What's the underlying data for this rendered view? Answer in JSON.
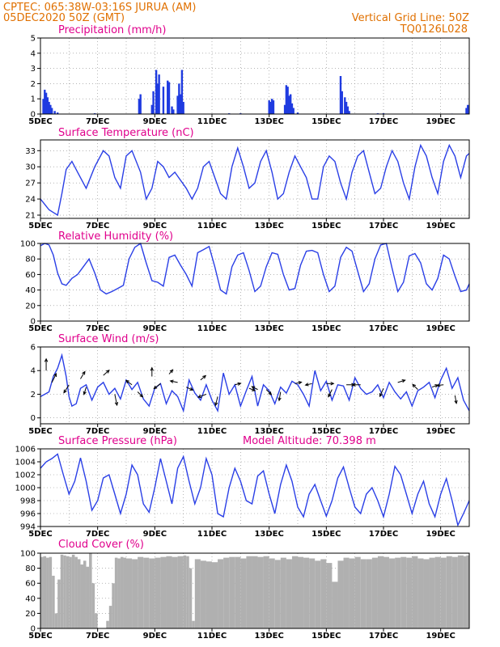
{
  "header": {
    "line1_left": "CPTEC:   065:38W-03:16S  JURUA (AM)",
    "line2_left": "05DEC2020 50Z (GMT)",
    "line1_right": "Vertical Grid Line: 50Z",
    "line2_right": "TQ0126L028"
  },
  "colors": {
    "header": "#e07000",
    "title": "#e0008c",
    "series": "#2a3fe6",
    "cloud": "#b0b0b0"
  },
  "chart_data": [
    {
      "type": "bar",
      "title": "Precipitation (mm/h)",
      "ylim": [
        0,
        5
      ],
      "yticks": [
        "0",
        "1",
        "2",
        "3",
        "4",
        "5"
      ],
      "x_ticks": [
        "5DEC",
        "7DEC",
        "9DEC",
        "11DEC",
        "13DEC",
        "15DEC",
        "17DEC",
        "19DEC"
      ],
      "x_days": [
        0,
        15
      ],
      "bars": [
        [
          0.1,
          1.0
        ],
        [
          0.15,
          1.6
        ],
        [
          0.2,
          1.4
        ],
        [
          0.25,
          1.1
        ],
        [
          0.3,
          0.8
        ],
        [
          0.35,
          0.6
        ],
        [
          0.4,
          0.4
        ],
        [
          0.5,
          0.2
        ],
        [
          0.6,
          0.1
        ],
        [
          1.9,
          0.05
        ],
        [
          3.45,
          1.0
        ],
        [
          3.5,
          1.3
        ],
        [
          3.9,
          0.6
        ],
        [
          3.95,
          1.5
        ],
        [
          4.05,
          2.9
        ],
        [
          4.1,
          2.0
        ],
        [
          4.15,
          2.6
        ],
        [
          4.3,
          1.8
        ],
        [
          4.45,
          2.2
        ],
        [
          4.5,
          2.1
        ],
        [
          4.6,
          0.5
        ],
        [
          4.65,
          0.3
        ],
        [
          4.8,
          1.2
        ],
        [
          4.85,
          2.0
        ],
        [
          4.9,
          1.3
        ],
        [
          4.95,
          2.9
        ],
        [
          5.0,
          0.8
        ],
        [
          6.6,
          0.05
        ],
        [
          7.0,
          0.05
        ],
        [
          8.0,
          0.9
        ],
        [
          8.05,
          0.8
        ],
        [
          8.1,
          1.0
        ],
        [
          8.15,
          0.9
        ],
        [
          8.55,
          0.6
        ],
        [
          8.6,
          1.9
        ],
        [
          8.65,
          1.8
        ],
        [
          8.7,
          1.2
        ],
        [
          8.75,
          1.3
        ],
        [
          8.8,
          0.7
        ],
        [
          8.85,
          0.4
        ],
        [
          9.0,
          0.1
        ],
        [
          10.5,
          2.5
        ],
        [
          10.55,
          1.5
        ],
        [
          10.65,
          1.1
        ],
        [
          10.7,
          0.8
        ],
        [
          10.75,
          0.5
        ],
        [
          10.8,
          0.2
        ],
        [
          11.8,
          0.05
        ],
        [
          12.0,
          0.05
        ],
        [
          14.4,
          0.03
        ],
        [
          14.9,
          0.4
        ],
        [
          14.95,
          0.6
        ]
      ]
    },
    {
      "type": "line",
      "title": "Surface Temperature (nC)",
      "ylim": [
        20.4,
        35
      ],
      "yticks": [
        "21",
        "24",
        "27",
        "30",
        "33"
      ],
      "ytick_values": [
        21,
        24,
        27,
        30,
        33
      ],
      "x_ticks": [
        "5DEC",
        "7DEC",
        "9DEC",
        "11DEC",
        "13DEC",
        "15DEC",
        "17DEC",
        "19DEC"
      ],
      "x_days": [
        0,
        15
      ],
      "x": [
        0,
        0.15,
        0.3,
        0.45,
        0.6,
        0.75,
        0.9,
        1.1,
        1.3,
        1.6,
        1.9,
        2.2,
        2.4,
        2.6,
        2.8,
        3.0,
        3.2,
        3.5,
        3.7,
        3.9,
        4.1,
        4.3,
        4.5,
        4.7,
        4.9,
        5.1,
        5.3,
        5.5,
        5.7,
        5.9,
        6.1,
        6.3,
        6.5,
        6.7,
        6.9,
        7.1,
        7.3,
        7.5,
        7.7,
        7.9,
        8.1,
        8.3,
        8.5,
        8.7,
        8.9,
        9.1,
        9.3,
        9.5,
        9.7,
        9.9,
        10.1,
        10.3,
        10.5,
        10.7,
        10.9,
        11.1,
        11.3,
        11.5,
        11.7,
        11.9,
        12.1,
        12.3,
        12.5,
        12.7,
        12.9,
        13.1,
        13.3,
        13.5,
        13.7,
        13.9,
        14.1,
        14.3,
        14.5,
        14.7,
        14.9,
        15.0
      ],
      "values": [
        24,
        23,
        22,
        21.5,
        21,
        25,
        29.5,
        31,
        29,
        26,
        30,
        33,
        32,
        28,
        26,
        32,
        33,
        29,
        24,
        26,
        31,
        30,
        28,
        29,
        27.5,
        26,
        24,
        26,
        30,
        31,
        28,
        25,
        24,
        30,
        33.5,
        30,
        26,
        27,
        31,
        33,
        29,
        24,
        25,
        29,
        32,
        30,
        28,
        24,
        24,
        30,
        32,
        31,
        27,
        24,
        29,
        32,
        33,
        29,
        25,
        26,
        30,
        33,
        31,
        27,
        24,
        30,
        34,
        32,
        28,
        25,
        31,
        34,
        32,
        28,
        32,
        32.5
      ]
    },
    {
      "type": "line",
      "title": "Relative Humidity (%)",
      "ylim": [
        0,
        100
      ],
      "yticks": [
        "0",
        "20",
        "40",
        "60",
        "80",
        "100"
      ],
      "ytick_values": [
        0,
        20,
        40,
        60,
        80,
        100
      ],
      "x_ticks": [
        "5DEC",
        "7DEC",
        "9DEC",
        "11DEC",
        "13DEC",
        "15DEC",
        "17DEC",
        "19DEC"
      ],
      "x_days": [
        0,
        15
      ],
      "x": [
        0,
        0.15,
        0.3,
        0.45,
        0.6,
        0.75,
        0.9,
        1.1,
        1.3,
        1.5,
        1.7,
        1.9,
        2.1,
        2.3,
        2.5,
        2.7,
        2.9,
        3.1,
        3.3,
        3.5,
        3.7,
        3.9,
        4.1,
        4.3,
        4.5,
        4.7,
        4.9,
        5.1,
        5.3,
        5.5,
        5.7,
        5.9,
        6.1,
        6.3,
        6.5,
        6.7,
        6.9,
        7.1,
        7.3,
        7.5,
        7.7,
        7.9,
        8.1,
        8.3,
        8.5,
        8.7,
        8.9,
        9.1,
        9.3,
        9.5,
        9.7,
        9.9,
        10.1,
        10.3,
        10.5,
        10.7,
        10.9,
        11.1,
        11.3,
        11.5,
        11.7,
        11.9,
        12.1,
        12.3,
        12.5,
        12.7,
        12.9,
        13.1,
        13.3,
        13.5,
        13.7,
        13.9,
        14.1,
        14.3,
        14.5,
        14.7,
        14.9,
        15.0
      ],
      "values": [
        97,
        100,
        98,
        85,
        62,
        48,
        46,
        55,
        60,
        70,
        80,
        62,
        40,
        35,
        38,
        42,
        46,
        80,
        95,
        100,
        75,
        52,
        50,
        45,
        82,
        85,
        72,
        60,
        45,
        88,
        92,
        96,
        70,
        40,
        35,
        70,
        85,
        88,
        65,
        38,
        45,
        70,
        88,
        86,
        60,
        40,
        42,
        72,
        90,
        91,
        88,
        60,
        38,
        45,
        82,
        95,
        90,
        64,
        38,
        48,
        80,
        98,
        100,
        68,
        38,
        50,
        84,
        87,
        75,
        48,
        40,
        55,
        85,
        80,
        58,
        38,
        40,
        48
      ]
    },
    {
      "type": "line",
      "title": "Surface Wind (m/s)",
      "ylim": [
        -0.5,
        6
      ],
      "yticks": [
        "0",
        "2",
        "4",
        "6"
      ],
      "ytick_values": [
        0,
        2,
        4,
        6
      ],
      "x_ticks": [
        "5DEC",
        "7DEC",
        "9DEC",
        "11DEC",
        "13DEC",
        "15DEC",
        "17DEC",
        "19DEC"
      ],
      "x_days": [
        0,
        15
      ],
      "x": [
        0,
        0.15,
        0.3,
        0.45,
        0.6,
        0.75,
        0.9,
        1.0,
        1.1,
        1.25,
        1.4,
        1.6,
        1.8,
        2.0,
        2.2,
        2.4,
        2.6,
        2.8,
        3.0,
        3.2,
        3.4,
        3.6,
        3.8,
        4.0,
        4.2,
        4.4,
        4.6,
        4.8,
        5.0,
        5.2,
        5.4,
        5.6,
        5.8,
        6.0,
        6.2,
        6.4,
        6.6,
        6.8,
        7.0,
        7.2,
        7.4,
        7.6,
        7.8,
        8.0,
        8.2,
        8.4,
        8.6,
        8.8,
        9.0,
        9.2,
        9.4,
        9.6,
        9.8,
        10.0,
        10.2,
        10.4,
        10.6,
        10.8,
        11.0,
        11.2,
        11.4,
        11.6,
        11.8,
        12.0,
        12.2,
        12.4,
        12.6,
        12.8,
        13.0,
        13.2,
        13.4,
        13.6,
        13.8,
        14.0,
        14.2,
        14.4,
        14.6,
        14.8,
        15.0
      ],
      "values": [
        1.8,
        2.0,
        2.2,
        3.5,
        4.2,
        5.3,
        3.5,
        1.8,
        1.0,
        1.2,
        2.5,
        2.8,
        1.5,
        2.6,
        3.0,
        2.0,
        2.5,
        1.6,
        3.2,
        2.4,
        3.0,
        1.6,
        1.0,
        2.5,
        2.9,
        1.2,
        2.3,
        1.8,
        0.6,
        3.2,
        2.1,
        1.5,
        2.8,
        1.5,
        0.6,
        3.8,
        2.0,
        2.8,
        1.0,
        2.3,
        3.5,
        1.0,
        2.8,
        2.3,
        1.2,
        2.6,
        2.1,
        3.1,
        2.8,
        2.0,
        1.0,
        4.0,
        2.3,
        3.1,
        1.5,
        2.8,
        2.7,
        1.5,
        3.4,
        2.5,
        2.0,
        2.2,
        2.8,
        1.7,
        3.0,
        2.2,
        1.6,
        2.2,
        1.0,
        2.3,
        2.6,
        3.0,
        1.7,
        3.2,
        4.2,
        2.5,
        3.4,
        1.5,
        0.6
      ],
      "vectors": [
        [
          0.2,
          4.0,
          0,
          1.6
        ],
        [
          0.4,
          3.0,
          0.6,
          1.2
        ],
        [
          1.0,
          2.8,
          -0.7,
          -1.1
        ],
        [
          1.4,
          3.3,
          0.6,
          1.0
        ],
        [
          1.6,
          2.6,
          -0.3,
          -1.0
        ],
        [
          2.2,
          3.6,
          0.8,
          0.7
        ],
        [
          2.6,
          2.0,
          0.3,
          -1.5
        ],
        [
          3.2,
          2.8,
          -0.8,
          0.6
        ],
        [
          3.4,
          2.2,
          0.7,
          -0.7
        ],
        [
          3.9,
          3.5,
          0,
          1.2
        ],
        [
          4.2,
          2.9,
          -0.9,
          -0.7
        ],
        [
          4.5,
          3.7,
          0.5,
          0.6
        ],
        [
          4.8,
          3.0,
          -1.0,
          0.2
        ],
        [
          5.1,
          2.6,
          0.9,
          -0.4
        ],
        [
          5.6,
          3.2,
          0.7,
          0.6
        ],
        [
          5.8,
          2.0,
          -1.1,
          -0.4
        ],
        [
          6.2,
          1.8,
          -0.3,
          -1.2
        ],
        [
          6.8,
          2.8,
          0.8,
          0.2
        ],
        [
          7.3,
          2.5,
          0.8,
          -0.3
        ],
        [
          7.6,
          2.4,
          -0.8,
          0.4
        ],
        [
          7.9,
          2.4,
          0.7,
          -0.7
        ],
        [
          8.4,
          2.2,
          -0.2,
          -1.2
        ],
        [
          8.9,
          2.9,
          0.9,
          0.2
        ],
        [
          9.5,
          2.9,
          -0.9,
          -0.2
        ],
        [
          10.0,
          2.9,
          1.0,
          0
        ],
        [
          10.2,
          2.4,
          -0.5,
          -1.0
        ],
        [
          10.7,
          2.8,
          1.1,
          0
        ],
        [
          11.2,
          2.8,
          -1.1,
          0
        ],
        [
          12.0,
          2.5,
          -0.5,
          -1.1
        ],
        [
          12.5,
          3.0,
          1.0,
          0.3
        ],
        [
          13.2,
          2.4,
          -0.7,
          0.7
        ],
        [
          13.7,
          2.6,
          0.8,
          0.3
        ],
        [
          14.1,
          2.8,
          -0.9,
          -0.1
        ],
        [
          14.5,
          1.9,
          0.2,
          -1.1
        ]
      ]
    },
    {
      "type": "line",
      "title": "Surface Pressure (hPa)",
      "annotation": "Model Altitude: 70.398 m",
      "ylim": [
        994,
        1006
      ],
      "yticks": [
        "994",
        "996",
        "998",
        "1000",
        "1002",
        "1004",
        "1006"
      ],
      "ytick_values": [
        994,
        996,
        998,
        1000,
        1002,
        1004,
        1006
      ],
      "x_ticks": [
        "5DEC",
        "7DEC",
        "9DEC",
        "11DEC",
        "13DEC",
        "15DEC",
        "17DEC",
        "19DEC"
      ],
      "x_days": [
        0,
        15
      ],
      "x": [
        0,
        0.2,
        0.4,
        0.6,
        0.8,
        1.0,
        1.2,
        1.4,
        1.6,
        1.8,
        2.0,
        2.2,
        2.4,
        2.6,
        2.8,
        3.0,
        3.2,
        3.4,
        3.6,
        3.8,
        4.0,
        4.2,
        4.4,
        4.6,
        4.8,
        5.0,
        5.2,
        5.4,
        5.6,
        5.8,
        6.0,
        6.2,
        6.4,
        6.6,
        6.8,
        7.0,
        7.2,
        7.4,
        7.6,
        7.8,
        8.0,
        8.2,
        8.4,
        8.6,
        8.8,
        9.0,
        9.2,
        9.4,
        9.6,
        9.8,
        10.0,
        10.2,
        10.4,
        10.6,
        10.8,
        11.0,
        11.2,
        11.4,
        11.6,
        11.8,
        12.0,
        12.2,
        12.4,
        12.6,
        12.8,
        13.0,
        13.2,
        13.4,
        13.6,
        13.8,
        14.0,
        14.2,
        14.4,
        14.6,
        14.8,
        15.0
      ],
      "values": [
        1003,
        1004,
        1004.5,
        1005.2,
        1002,
        999,
        1001,
        1004.6,
        1001,
        996.5,
        998,
        1001.5,
        1002,
        999,
        996,
        999,
        1003.5,
        1002,
        997.5,
        996.2,
        1000,
        1004.5,
        1001,
        997.5,
        1003,
        1004.8,
        1001,
        997.5,
        1000,
        1004.5,
        1002,
        996,
        995.5,
        1000,
        1003,
        1001,
        998,
        997.5,
        1001.8,
        1002.6,
        999,
        996,
        1000.5,
        1003.5,
        1001,
        997,
        995.5,
        999,
        1000.5,
        998,
        995.6,
        998,
        1001.5,
        1003.2,
        1000,
        997,
        996,
        999,
        1000,
        998,
        995.5,
        999,
        1003.3,
        1002,
        999,
        996,
        999,
        1001,
        997.5,
        995.5,
        999,
        1001.4,
        998,
        994.2,
        996,
        998
      ]
    },
    {
      "type": "bar",
      "title": "Cloud Cover (%)",
      "ylim": [
        0,
        100
      ],
      "yticks": [
        "0",
        "20",
        "40",
        "60",
        "80",
        "100"
      ],
      "x_ticks": [
        "5DEC",
        "7DEC",
        "9DEC",
        "11DEC",
        "13DEC",
        "15DEC",
        "17DEC",
        "19DEC"
      ],
      "x_days": [
        0,
        15
      ],
      "x": [
        0,
        0.1,
        0.2,
        0.3,
        0.4,
        0.5,
        0.6,
        0.7,
        0.8,
        0.9,
        1.0,
        1.1,
        1.2,
        1.3,
        1.4,
        1.5,
        1.6,
        1.7,
        1.8,
        1.9,
        2.0,
        2.1,
        2.2,
        2.3,
        2.4,
        2.5,
        2.6,
        2.7,
        2.8,
        2.9,
        3.0,
        3.2,
        3.4,
        3.6,
        3.8,
        4.0,
        4.2,
        4.4,
        4.6,
        4.8,
        5.0,
        5.1,
        5.2,
        5.3,
        5.4,
        5.6,
        5.8,
        6.0,
        6.2,
        6.4,
        6.6,
        6.8,
        7.0,
        7.2,
        7.4,
        7.6,
        7.8,
        8.0,
        8.2,
        8.4,
        8.6,
        8.8,
        9.0,
        9.2,
        9.4,
        9.6,
        9.8,
        10.0,
        10.2,
        10.4,
        10.6,
        10.8,
        11.0,
        11.2,
        11.4,
        11.6,
        11.8,
        12.0,
        12.2,
        12.4,
        12.6,
        12.8,
        13.0,
        13.2,
        13.4,
        13.6,
        13.8,
        14.0,
        14.2,
        14.4,
        14.6,
        14.8,
        14.9
      ],
      "values": [
        95,
        96,
        94,
        95,
        70,
        20,
        65,
        98,
        97,
        96,
        95,
        98,
        95,
        92,
        85,
        90,
        82,
        100,
        60,
        20,
        0,
        0,
        0,
        10,
        30,
        60,
        94,
        93,
        95,
        94,
        93,
        92,
        95,
        94,
        93,
        94,
        95,
        96,
        95,
        96,
        97,
        96,
        80,
        10,
        92,
        90,
        89,
        88,
        92,
        94,
        95,
        95,
        93,
        96,
        96,
        95,
        96,
        93,
        91,
        94,
        92,
        96,
        95,
        94,
        93,
        90,
        92,
        87,
        62,
        90,
        94,
        93,
        95,
        92,
        92,
        94,
        96,
        95,
        93,
        94,
        95,
        94,
        96,
        93,
        92,
        94,
        95,
        94,
        96,
        95,
        97,
        96,
        97
      ]
    }
  ]
}
